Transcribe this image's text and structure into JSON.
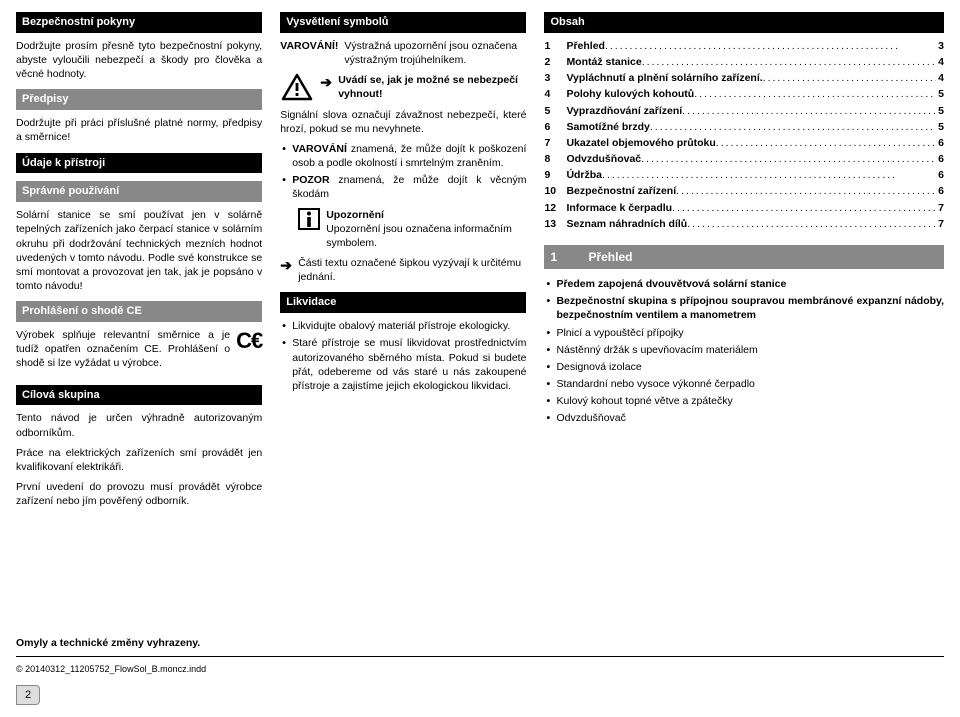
{
  "col1": {
    "h1": "Bezpečnostní pokyny",
    "p1": "Dodržujte prosím přesně tyto bezpečnostní pokyny, abyste vyloučili nebezpečí a škody pro člověka a věcné hodnoty.",
    "h2": "Předpisy",
    "p2": "Dodržujte při práci příslušné platné normy, předpisy a směrnice!",
    "h3": "Údaje k přístroji",
    "h4": "Správné používání",
    "p3": "Solární stanice se smí používat jen v solárně tepelných zařízeních jako čerpací stanice v solárním okruhu při dodržování technických mezních hodnot uvedených v tomto návodu. Podle své konstrukce se smí montovat a provozovat jen tak, jak je popsáno v tomto návodu!",
    "h5": "Prohlášení o shodě CE",
    "p4": "Výrobek splňuje relevantní směrnice a je tudíž opatřen označením CE. Prohlášení o shodě si lze vyžádat u výrobce.",
    "h6": "Cílová skupina",
    "p5": "Tento návod je určen výhradně autorizovaným odborníkům.",
    "p6": "Práce na elektrických zařízeních smí provádět jen kvalifikovaní elektrikáři.",
    "p7": "První uvedení do provozu musí provádět výrobce zařízení nebo jím pověřený odborník."
  },
  "col2": {
    "h1": "Vysvětlení symbolů",
    "warnLabel": "VAROVÁNÍ!",
    "warnText1": "Výstražná upozornění jsou označena výstražným trojúhelníkem.",
    "warnText2": "Uvádí se, jak je možné se nebezpečí vyhnout!",
    "p1": "Signální slova označují závažnost nebezpečí, které hrozí, pokud se mu nevyhnete.",
    "li1": "VAROVÁNÍ znamená, že může dojít k poškození osob a podle okolností i smrtelným zraněním.",
    "li2": "POZOR znamená, že může dojít k věcným škodám",
    "infoTitle": "Upozornění",
    "infoText": "Upozornění jsou označena informačním symbolem.",
    "arrowText": "Části textu označené šipkou vyzývají k určitému jednání.",
    "h2": "Likvidace",
    "li3": "Likvidujte obalový materiál přístroje ekologicky.",
    "li4": "Staré přístroje se musí likvidovat prostřednictvím autorizovaného sběrného místa. Pokud si budete přát, odebereme od vás staré u nás zakoupené přístroje a zajistíme jejich ekologickou likvidaci."
  },
  "col3": {
    "h1": "Obsah",
    "toc": [
      {
        "n": "1",
        "t": "Přehled",
        "p": "3"
      },
      {
        "n": "2",
        "t": "Montáž stanice",
        "p": "4"
      },
      {
        "n": "3",
        "t": "Vypláchnutí a plnění solárního zařízení.",
        "p": "4"
      },
      {
        "n": "4",
        "t": "Polohy kulových kohoutů",
        "p": "5"
      },
      {
        "n": "5",
        "t": "Vyprazdňování zařízení",
        "p": "5"
      },
      {
        "n": "6",
        "t": "Samotížné brzdy",
        "p": "5"
      },
      {
        "n": "7",
        "t": "Ukazatel objemového průtoku",
        "p": "6"
      },
      {
        "n": "8",
        "t": "Odvzdušňovač",
        "p": "6"
      },
      {
        "n": "9",
        "t": "Údržba",
        "p": "6"
      },
      {
        "n": "10",
        "t": "Bezpečnostní zařízení",
        "p": "6"
      },
      {
        "n": "12",
        "t": "Informace k čerpadlu",
        "p": "7"
      },
      {
        "n": "13",
        "t": "Seznam náhradních dílů",
        "p": "7"
      }
    ],
    "sec1num": "1",
    "sec1title": "Přehled",
    "features": [
      "Předem zapojená dvouvětvová solární stanice",
      "Bezpečnostní skupina s přípojnou soupravou membránové expanzní nádoby, bezpečnostním ventilem a manometrem",
      "Plnicí a vypouštěcí přípojky",
      "Nástěnný držák s upevňovacím materiálem",
      "Designová izolace",
      "Standardní nebo vysoce výkonné čerpadlo",
      "Kulový kohout topné větve a zpátečky",
      "Odvzdušňovač"
    ]
  },
  "footer": {
    "line1": "Omyly a technické změny vyhrazeny.",
    "line2": "© 20140312_11205752_FlowSol_B.moncz.indd",
    "page": "2"
  }
}
